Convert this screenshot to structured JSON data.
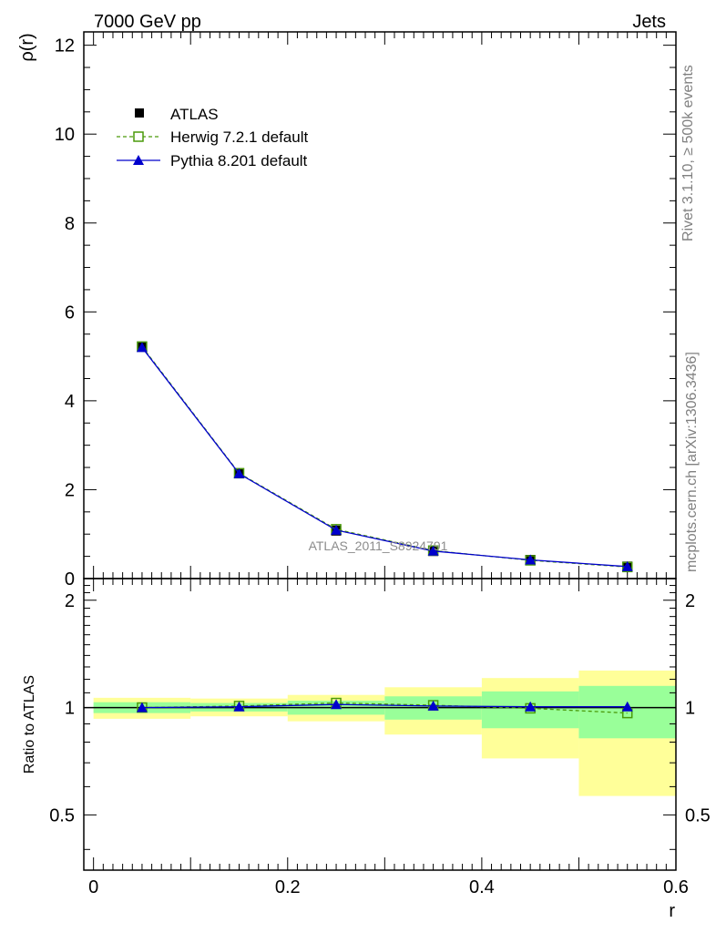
{
  "header": {
    "left": "7000 GeV pp",
    "right": "Jets"
  },
  "side_labels": {
    "rivet": "Rivet 3.1.10, ≥ 500k events",
    "mcplots": "mcplots.cern.ch [arXiv:1306.3436]"
  },
  "watermark": "ATLAS_2011_S8924791",
  "chart_data": [
    {
      "type": "line",
      "panel": "main",
      "ylabel": "ρ(r)",
      "xlim": [
        -0.01,
        0.6
      ],
      "ylim": [
        0,
        12.3
      ],
      "yticks": [
        0,
        2,
        4,
        6,
        8,
        10,
        12
      ],
      "ytick_labels": [
        "0",
        "2",
        "4",
        "6",
        "8",
        "10",
        "12"
      ],
      "legend_position": "top-left",
      "x": [
        0.05,
        0.15,
        0.25,
        0.35,
        0.45,
        0.55
      ],
      "series": [
        {
          "name": "ATLAS",
          "marker": "filled-square",
          "color": "#000000",
          "values": [
            5.22,
            2.37,
            1.08,
            0.62,
            0.42,
            0.27
          ]
        },
        {
          "name": "Herwig 7.2.1 default",
          "marker": "open-square",
          "line": "dashed",
          "color": "#4a9a0a",
          "values": [
            5.22,
            2.37,
            1.11,
            0.63,
            0.41,
            0.26
          ]
        },
        {
          "name": "Pythia 8.201 default",
          "marker": "filled-triangle",
          "line": "solid",
          "color": "#0000cc",
          "values": [
            5.2,
            2.36,
            1.09,
            0.62,
            0.42,
            0.27
          ]
        }
      ]
    },
    {
      "type": "line",
      "panel": "ratio",
      "xlabel": "r",
      "ylabel": "Ratio to ATLAS",
      "xlim": [
        -0.01,
        0.6
      ],
      "ylim": [
        0.35,
        2.3
      ],
      "xticks": [
        0,
        0.2,
        0.4,
        0.6
      ],
      "xtick_labels": [
        "0",
        "0.2",
        "0.4",
        "0.6"
      ],
      "yticks": [
        0.5,
        1,
        2
      ],
      "ytick_labels": [
        "0.5",
        "1",
        "2"
      ],
      "reference": 1,
      "bands": {
        "x_edges": [
          0.0,
          0.1,
          0.2,
          0.3,
          0.4,
          0.5,
          0.6
        ],
        "stat_color": "#99ff99",
        "total_color": "#ffff99",
        "stat_low": [
          0.965,
          0.975,
          0.955,
          0.925,
          0.875,
          0.82
        ],
        "stat_high": [
          1.035,
          1.03,
          1.045,
          1.075,
          1.11,
          1.15
        ],
        "total_low": [
          0.93,
          0.945,
          0.915,
          0.84,
          0.72,
          0.565
        ],
        "total_high": [
          1.065,
          1.06,
          1.085,
          1.14,
          1.21,
          1.27
        ]
      },
      "x": [
        0.05,
        0.15,
        0.25,
        0.35,
        0.45,
        0.55
      ],
      "series": [
        {
          "name": "Herwig 7.2.1 default",
          "marker": "open-square",
          "line": "dashed",
          "color": "#4a9a0a",
          "values": [
            1.0,
            1.01,
            1.03,
            1.015,
            0.995,
            0.965
          ]
        },
        {
          "name": "Pythia 8.201 default",
          "marker": "filled-triangle",
          "line": "solid",
          "color": "#0000cc",
          "values": [
            1.0,
            1.005,
            1.02,
            1.01,
            1.005,
            1.005
          ]
        }
      ]
    }
  ]
}
